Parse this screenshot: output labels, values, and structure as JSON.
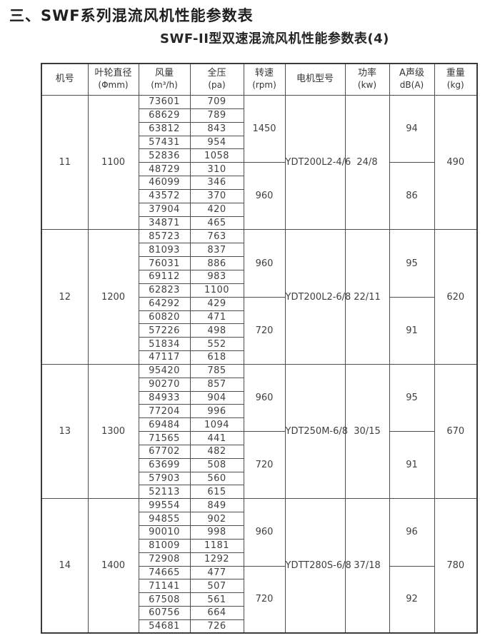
{
  "page": {
    "title": "三、SWF系列混流风机性能参数表",
    "subtitle": "SWF-II型双速混流风机性能参数表(4)"
  },
  "table": {
    "headers": [
      {
        "line1": "机号",
        "line2": ""
      },
      {
        "line1": "叶轮直径",
        "line2": "(Φmm)"
      },
      {
        "line1": "风量",
        "line2": "(m³/h)"
      },
      {
        "line1": "全压",
        "line2": "(pa)"
      },
      {
        "line1": "转速",
        "line2": "(rpm)"
      },
      {
        "line1": "电机型号",
        "line2": ""
      },
      {
        "line1": "功率",
        "line2": "(kw)"
      },
      {
        "line1": "A声级",
        "line2": "dB(A)"
      },
      {
        "line1": "重量",
        "line2": "(kg)"
      }
    ],
    "blocks": [
      {
        "machine_no": "11",
        "impeller_diameter": "1100",
        "motor_model": "YDT200L2-4/6",
        "power": "24/8",
        "weight": "490",
        "speed_groups": [
          {
            "rpm": "1450",
            "db": "94",
            "rows": [
              [
                "73601",
                "709"
              ],
              [
                "68629",
                "789"
              ],
              [
                "63812",
                "843"
              ],
              [
                "57431",
                "954"
              ],
              [
                "52836",
                "1058"
              ]
            ]
          },
          {
            "rpm": "960",
            "db": "86",
            "rows": [
              [
                "48729",
                "310"
              ],
              [
                "46099",
                "346"
              ],
              [
                "43572",
                "370"
              ],
              [
                "37904",
                "420"
              ],
              [
                "34871",
                "465"
              ]
            ]
          }
        ]
      },
      {
        "machine_no": "12",
        "impeller_diameter": "1200",
        "motor_model": "YDT200L2-6/8",
        "power": "22/11",
        "weight": "620",
        "speed_groups": [
          {
            "rpm": "960",
            "db": "95",
            "rows": [
              [
                "85723",
                "763"
              ],
              [
                "81093",
                "837"
              ],
              [
                "76031",
                "886"
              ],
              [
                "69112",
                "983"
              ],
              [
                "62823",
                "1100"
              ]
            ]
          },
          {
            "rpm": "720",
            "db": "91",
            "rows": [
              [
                "64292",
                "429"
              ],
              [
                "60820",
                "471"
              ],
              [
                "57226",
                "498"
              ],
              [
                "51834",
                "552"
              ],
              [
                "47117",
                "618"
              ]
            ]
          }
        ]
      },
      {
        "machine_no": "13",
        "impeller_diameter": "1300",
        "motor_model": "YDT250M-6/8",
        "power": "30/15",
        "weight": "670",
        "speed_groups": [
          {
            "rpm": "960",
            "db": "95",
            "rows": [
              [
                "95420",
                "785"
              ],
              [
                "90270",
                "857"
              ],
              [
                "84933",
                "904"
              ],
              [
                "77204",
                "996"
              ],
              [
                "69484",
                "1094"
              ]
            ]
          },
          {
            "rpm": "720",
            "db": "91",
            "rows": [
              [
                "71565",
                "441"
              ],
              [
                "67702",
                "482"
              ],
              [
                "63699",
                "508"
              ],
              [
                "57903",
                "560"
              ],
              [
                "52113",
                "615"
              ]
            ]
          }
        ]
      },
      {
        "machine_no": "14",
        "impeller_diameter": "1400",
        "motor_model": "YDTT280S-6/8",
        "power": "37/18",
        "weight": "780",
        "speed_groups": [
          {
            "rpm": "960",
            "db": "96",
            "rows": [
              [
                "99554",
                "849"
              ],
              [
                "94855",
                "902"
              ],
              [
                "90010",
                "998"
              ],
              [
                "81009",
                "1181"
              ],
              [
                "72908",
                "1292"
              ]
            ]
          },
          {
            "rpm": "720",
            "db": "92",
            "rows": [
              [
                "74665",
                "477"
              ],
              [
                "71141",
                "507"
              ],
              [
                "67508",
                "561"
              ],
              [
                "60756",
                "664"
              ],
              [
                "54681",
                "726"
              ]
            ]
          }
        ]
      }
    ]
  }
}
